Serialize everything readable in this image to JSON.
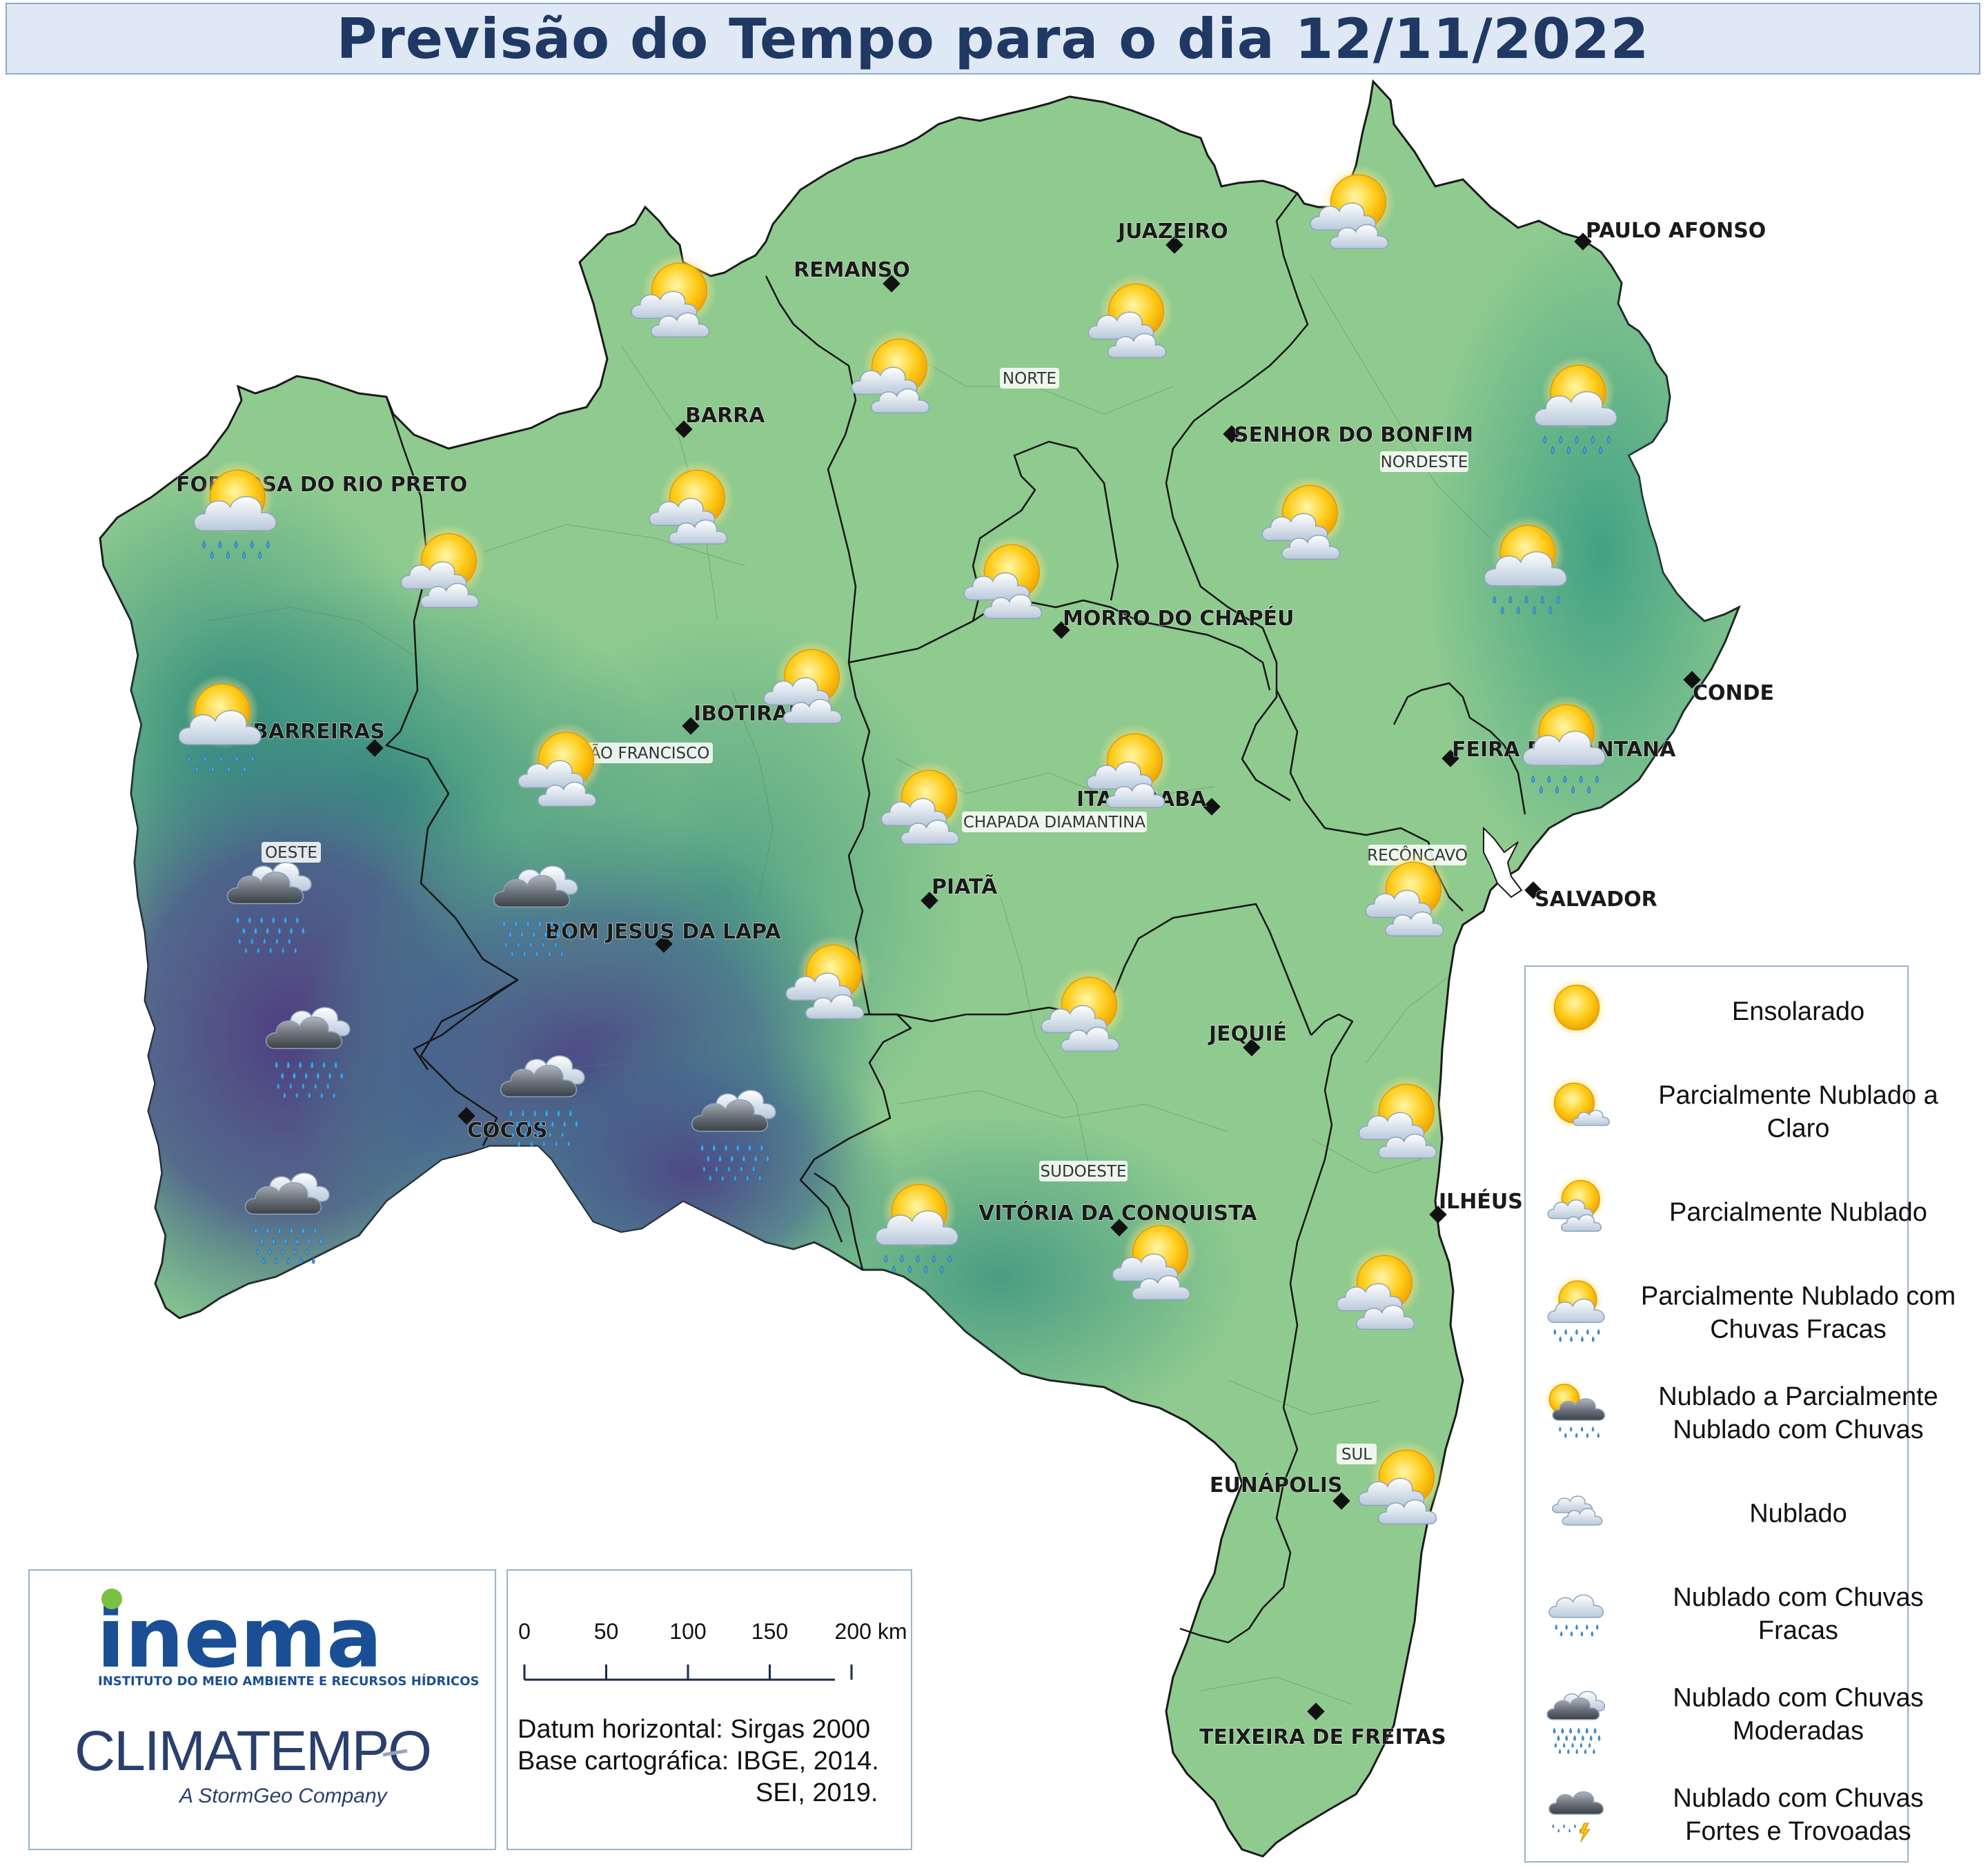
{
  "title": "Previsão do Tempo para o dia 12/11/2022",
  "cities": [
    {
      "id": "remanso",
      "name": "REMANSO"
    },
    {
      "id": "juazeiro",
      "name": "JUAZEIRO"
    },
    {
      "id": "paulo-afonso",
      "name": "PAULO AFONSO"
    },
    {
      "id": "barra",
      "name": "BARRA"
    },
    {
      "id": "senhor-do-bonfim",
      "name": "SENHOR DO BONFIM"
    },
    {
      "id": "formosa",
      "name": "FORMOSA DO RIO PRETO"
    },
    {
      "id": "morro-do-chapeu",
      "name": "MORRO DO CHAPÉU"
    },
    {
      "id": "conde",
      "name": "CONDE"
    },
    {
      "id": "ibotirama",
      "name": "IBOTIRAMA"
    },
    {
      "id": "barreiras",
      "name": "BARREIRAS"
    },
    {
      "id": "feira-de-santana",
      "name": "FEIRA DE SANTANA"
    },
    {
      "id": "itaberaba",
      "name": "ITABERABA"
    },
    {
      "id": "salvador",
      "name": "SALVADOR"
    },
    {
      "id": "piata",
      "name": "PIATÃ"
    },
    {
      "id": "bom-jesus-da-lapa",
      "name": "BOM JESUS DA LAPA"
    },
    {
      "id": "jequie",
      "name": "JEQUIÉ"
    },
    {
      "id": "cocos",
      "name": "COCOS"
    },
    {
      "id": "ilheus",
      "name": "ILHÉUS"
    },
    {
      "id": "vitoria-da-conquista",
      "name": "VITÓRIA DA CONQUISTA"
    },
    {
      "id": "eunapolis",
      "name": "EUNÁPOLIS"
    },
    {
      "id": "teixeira-de-freitas",
      "name": "TEIXEIRA DE FREITAS"
    }
  ],
  "regions": [
    {
      "id": "norte",
      "name": "NORTE"
    },
    {
      "id": "nordeste",
      "name": "NORDESTE"
    },
    {
      "id": "sao-francisco",
      "name": "SÃO FRANCISCO"
    },
    {
      "id": "chapada",
      "name": "CHAPADA DIAMANTINA"
    },
    {
      "id": "reconcavo",
      "name": "RECÔNCAVO"
    },
    {
      "id": "oeste",
      "name": "OESTE"
    },
    {
      "id": "sudoeste",
      "name": "SUDOESTE"
    },
    {
      "id": "sul",
      "name": "SUL"
    }
  ],
  "forecast_icons": [
    "partly-cloudy",
    "partly-cloudy",
    "partly-cloudy",
    "partly-cloudy",
    "partly-cloudy-light-rain",
    "partly-cloudy-light-rain",
    "partly-cloudy",
    "partly-cloudy-light-rain",
    "partly-cloudy",
    "partly-cloudy",
    "partly-cloudy",
    "partly-cloudy",
    "partly-cloudy-light-rain",
    "partly-cloudy",
    "partly-cloudy-light-rain",
    "partly-cloudy",
    "cloudy-moderate-rain",
    "cloudy-moderate-rain",
    "cloudy-moderate-rain",
    "cloudy-moderate-rain",
    "cloudy-moderate-rain",
    "cloudy-moderate-rain",
    "partly-cloudy",
    "partly-cloudy",
    "partly-cloudy",
    "partly-cloudy-light-rain",
    "partly-cloudy",
    "partly-cloudy",
    "partly-cloudy",
    "partly-cloudy",
    "partly-cloudy"
  ],
  "legend": [
    {
      "icon": "sunny",
      "label_lines": [
        "Ensolarado"
      ]
    },
    {
      "icon": "partly-cloudy-to-clear",
      "label_lines": [
        "Parcialmente Nublado a",
        "Claro"
      ]
    },
    {
      "icon": "partly-cloudy",
      "label_lines": [
        "Parcialmente Nublado"
      ]
    },
    {
      "icon": "partly-cloudy-light-rain",
      "label_lines": [
        "Parcialmente Nublado com",
        "Chuvas Fracas"
      ]
    },
    {
      "icon": "cloudy-to-partly-cloudy-rain",
      "label_lines": [
        "Nublado a Parcialmente",
        "Nublado com Chuvas"
      ]
    },
    {
      "icon": "cloudy",
      "label_lines": [
        "Nublado"
      ]
    },
    {
      "icon": "cloudy-light-rain",
      "label_lines": [
        "Nublado com Chuvas",
        "Fracas"
      ]
    },
    {
      "icon": "cloudy-moderate-rain",
      "label_lines": [
        "Nublado com Chuvas",
        "Moderadas"
      ]
    },
    {
      "icon": "cloudy-heavy-rain-thunder",
      "label_lines": [
        "Nublado com Chuvas",
        "Fortes e Trovoadas"
      ]
    }
  ],
  "scale_bar": {
    "ticks": [
      "0",
      "50",
      "100",
      "150",
      "200 km"
    ]
  },
  "credits": [
    "Datum horizontal: Sirgas 2000",
    "Base cartográfica: IBGE, 2014.",
    "SEI, 2019."
  ],
  "logos": {
    "inema": "inema",
    "inema_sub": "INSTITUTO DO MEIO AMBIENTE E RECURSOS HÍDRICOS",
    "climatempo": "CLIMATEMPO",
    "climatempo_sub": "A StormGeo Company"
  },
  "colors": {
    "title_text": "#1f3864",
    "title_bg": "#dfe9f6",
    "map_green": "#8ecb8e",
    "map_teal": "#3f9a86",
    "map_purple": "#4d3f7e",
    "inema_blue": "#1a4f95",
    "inema_green": "#7ac142",
    "climatempo_blue": "#2a3f6e"
  }
}
